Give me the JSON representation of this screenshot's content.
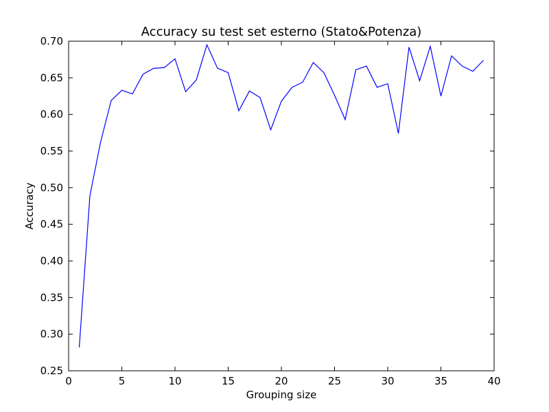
{
  "chart_data": {
    "type": "line",
    "title": "Accuracy su test set esterno (Stato&Potenza)",
    "xlabel": "Grouping size",
    "ylabel": "Accuracy",
    "xlim": [
      0,
      40
    ],
    "ylim": [
      0.25,
      0.7
    ],
    "xticks": [
      0,
      5,
      10,
      15,
      20,
      25,
      30,
      35,
      40
    ],
    "yticks": [
      0.25,
      0.3,
      0.35,
      0.4,
      0.45,
      0.5,
      0.55,
      0.6,
      0.65,
      0.7
    ],
    "grid": false,
    "series": [
      {
        "color": "#0000ff",
        "x": [
          1,
          2,
          3,
          4,
          5,
          6,
          7,
          8,
          9,
          10,
          11,
          12,
          13,
          14,
          15,
          16,
          17,
          18,
          19,
          20,
          21,
          22,
          23,
          24,
          25,
          26,
          27,
          28,
          29,
          30,
          31,
          32,
          33,
          34,
          35,
          36,
          37,
          38,
          39
        ],
        "y": [
          0.282,
          0.489,
          0.562,
          0.619,
          0.633,
          0.628,
          0.655,
          0.663,
          0.664,
          0.676,
          0.631,
          0.647,
          0.695,
          0.663,
          0.657,
          0.605,
          0.632,
          0.623,
          0.579,
          0.618,
          0.637,
          0.644,
          0.671,
          0.657,
          0.626,
          0.593,
          0.661,
          0.666,
          0.637,
          0.642,
          0.574,
          0.692,
          0.646,
          0.693,
          0.625,
          0.68,
          0.666,
          0.659,
          0.674
        ]
      }
    ]
  }
}
